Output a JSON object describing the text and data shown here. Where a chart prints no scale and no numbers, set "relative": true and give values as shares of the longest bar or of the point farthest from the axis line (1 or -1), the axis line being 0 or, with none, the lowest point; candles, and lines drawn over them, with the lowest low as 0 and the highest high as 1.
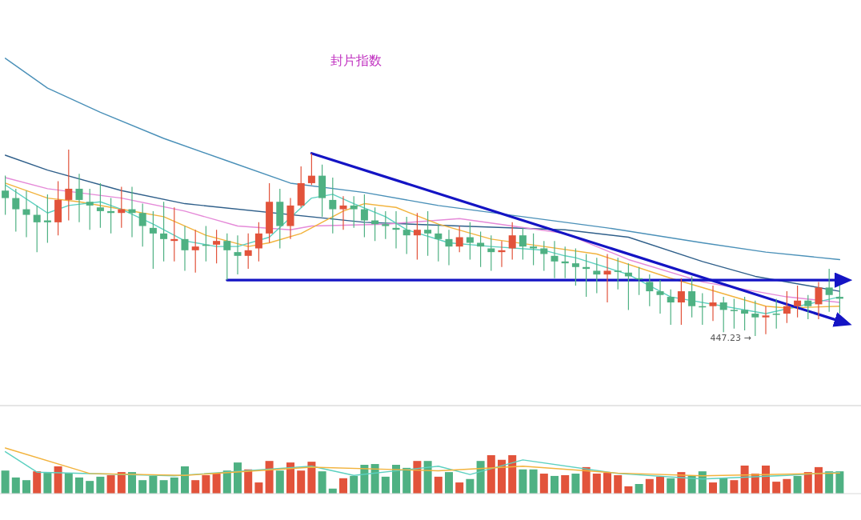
{
  "chart_data": [
    {
      "type": "candlestick",
      "title": "封片指数",
      "relative": true,
      "categories": [
        null,
        null,
        null,
        null,
        null,
        null,
        null,
        null,
        null,
        null,
        null,
        null,
        null,
        null,
        null,
        null,
        null,
        null,
        null,
        null,
        null,
        null,
        null,
        null,
        null,
        null,
        null,
        null,
        null,
        null,
        null,
        null,
        null,
        null,
        null,
        null,
        null,
        null,
        null,
        null,
        null,
        null,
        null,
        null,
        null,
        null,
        null,
        null,
        null,
        null,
        null,
        null,
        null,
        null,
        null,
        null,
        null,
        null,
        null,
        null,
        null,
        null,
        null,
        null,
        null,
        null,
        null,
        null,
        null,
        null,
        null,
        null,
        null,
        null,
        null,
        null,
        null,
        null,
        null,
        null
      ],
      "ohlc": [
        [
          0.78,
          0.86,
          0.65,
          0.74
        ],
        [
          0.74,
          0.79,
          0.56,
          0.68
        ],
        [
          0.68,
          0.78,
          0.53,
          0.65
        ],
        [
          0.65,
          0.7,
          0.45,
          0.61
        ],
        [
          0.62,
          0.76,
          0.5,
          0.61
        ],
        [
          0.61,
          0.83,
          0.54,
          0.73
        ],
        [
          0.73,
          1,
          0.62,
          0.79
        ],
        [
          0.79,
          0.87,
          0.61,
          0.73
        ],
        [
          0.72,
          0.79,
          0.57,
          0.7
        ],
        [
          0.69,
          0.82,
          0.58,
          0.67
        ],
        [
          0.67,
          0.74,
          0.55,
          0.66
        ],
        [
          0.66,
          0.8,
          0.58,
          0.68
        ],
        [
          0.68,
          0.8,
          0.53,
          0.66
        ],
        [
          0.66,
          0.71,
          0.48,
          0.59
        ],
        [
          0.58,
          0.67,
          0.36,
          0.55
        ],
        [
          0.55,
          0.72,
          0.4,
          0.52
        ],
        [
          0.51,
          0.69,
          0.4,
          0.52
        ],
        [
          0.52,
          0.59,
          0.35,
          0.46
        ],
        [
          0.46,
          0.57,
          0.34,
          0.48
        ],
        [
          0.49,
          0.59,
          0.4,
          0.49
        ],
        [
          0.49,
          0.57,
          0.39,
          0.51
        ],
        [
          0.51,
          0.55,
          0.3,
          0.46
        ],
        [
          0.45,
          0.54,
          0.33,
          0.43
        ],
        [
          0.43,
          0.55,
          0.36,
          0.46
        ],
        [
          0.47,
          0.61,
          0.4,
          0.55
        ],
        [
          0.55,
          0.82,
          0.5,
          0.72
        ],
        [
          0.72,
          0.79,
          0.47,
          0.59
        ],
        [
          0.59,
          0.74,
          0.52,
          0.7
        ],
        [
          0.7,
          0.91,
          0.69,
          0.82
        ],
        [
          0.82,
          0.98,
          0.81,
          0.86
        ],
        [
          0.86,
          0.92,
          0.64,
          0.74
        ],
        [
          0.73,
          0.85,
          0.55,
          0.68
        ],
        [
          0.68,
          0.75,
          0.57,
          0.7
        ],
        [
          0.7,
          0.75,
          0.58,
          0.68
        ],
        [
          0.68,
          0.76,
          0.53,
          0.62
        ],
        [
          0.62,
          0.69,
          0.51,
          0.6
        ],
        [
          0.6,
          0.67,
          0.52,
          0.59
        ],
        [
          0.58,
          0.67,
          0.47,
          0.57
        ],
        [
          0.57,
          0.64,
          0.44,
          0.54
        ],
        [
          0.54,
          0.66,
          0.41,
          0.57
        ],
        [
          0.57,
          0.67,
          0.43,
          0.55
        ],
        [
          0.55,
          0.6,
          0.4,
          0.52
        ],
        [
          0.52,
          0.57,
          0.38,
          0.48
        ],
        [
          0.48,
          0.59,
          0.45,
          0.53
        ],
        [
          0.53,
          0.61,
          0.41,
          0.5
        ],
        [
          0.5,
          0.56,
          0.37,
          0.48
        ],
        [
          0.47,
          0.54,
          0.35,
          0.45
        ],
        [
          0.45,
          0.51,
          0.37,
          0.46
        ],
        [
          0.47,
          0.61,
          0.41,
          0.54
        ],
        [
          0.54,
          0.58,
          0.41,
          0.48
        ],
        [
          0.48,
          0.55,
          0.38,
          0.47
        ],
        [
          0.47,
          0.51,
          0.35,
          0.44
        ],
        [
          0.43,
          0.51,
          0.31,
          0.4
        ],
        [
          0.4,
          0.48,
          0.31,
          0.39
        ],
        [
          0.39,
          0.47,
          0.27,
          0.37
        ],
        [
          0.37,
          0.44,
          0.21,
          0.36
        ],
        [
          0.35,
          0.42,
          0.23,
          0.33
        ],
        [
          0.33,
          0.44,
          0.18,
          0.35
        ],
        [
          0.35,
          0.42,
          0.25,
          0.35
        ],
        [
          0.34,
          0.39,
          0.14,
          0.32
        ],
        [
          0.31,
          0.37,
          0.22,
          0.31
        ],
        [
          0.29,
          0.33,
          0.16,
          0.24
        ],
        [
          0.24,
          0.3,
          0.12,
          0.22
        ],
        [
          0.21,
          0.25,
          0.06,
          0.18
        ],
        [
          0.18,
          0.31,
          0.06,
          0.24
        ],
        [
          0.24,
          0.32,
          0.1,
          0.16
        ],
        [
          0.16,
          0.23,
          0.06,
          0.16
        ],
        [
          0.16,
          0.27,
          0.08,
          0.18
        ],
        [
          0.18,
          0.21,
          0.02,
          0.14
        ],
        [
          0.14,
          0.2,
          0.04,
          0.14
        ],
        [
          0.14,
          0.21,
          0.03,
          0.12
        ],
        [
          0.12,
          0.19,
          0,
          0.1
        ],
        [
          0.1,
          0.16,
          0.01,
          0.11
        ],
        [
          0.12,
          0.2,
          0.04,
          0.12
        ],
        [
          0.12,
          0.24,
          0.07,
          0.16
        ],
        [
          0.16,
          0.27,
          0.1,
          0.19
        ],
        [
          0.19,
          0.22,
          0.09,
          0.16
        ],
        [
          0.17,
          0.29,
          0.09,
          0.26
        ],
        [
          0.26,
          0.36,
          0.13,
          0.22
        ],
        [
          0.21,
          0.27,
          0.12,
          0.2
        ]
      ],
      "colors": [
        "#4fb183",
        "#4fb183",
        "#4fb183",
        "#4fb183",
        "#4fb183",
        "#e2533b",
        "#e2533b",
        "#4fb183",
        "#4fb183",
        "#4fb183",
        "#4fb183",
        "#e2533b",
        "#4fb183",
        "#4fb183",
        "#4fb183",
        "#4fb183",
        "#e2533b",
        "#4fb183",
        "#e2533b",
        "#4fb183",
        "#e2533b",
        "#4fb183",
        "#4fb183",
        "#e2533b",
        "#e2533b",
        "#e2533b",
        "#4fb183",
        "#e2533b",
        "#e2533b",
        "#e2533b",
        "#4fb183",
        "#4fb183",
        "#e2533b",
        "#4fb183",
        "#4fb183",
        "#4fb183",
        "#4fb183",
        "#4fb183",
        "#4fb183",
        "#e2533b",
        "#4fb183",
        "#4fb183",
        "#4fb183",
        "#e2533b",
        "#4fb183",
        "#4fb183",
        "#4fb183",
        "#e2533b",
        "#e2533b",
        "#4fb183",
        "#4fb183",
        "#4fb183",
        "#4fb183",
        "#4fb183",
        "#4fb183",
        "#4fb183",
        "#4fb183",
        "#e2533b",
        "#4fb183",
        "#4fb183",
        "#4fb183",
        "#4fb183",
        "#4fb183",
        "#4fb183",
        "#e2533b",
        "#4fb183",
        "#4fb183",
        "#e2533b",
        "#4fb183",
        "#4fb183",
        "#4fb183",
        "#4fb183",
        "#e2533b",
        "#4fb183",
        "#e2533b",
        "#e2533b",
        "#4fb183",
        "#e2533b",
        "#4fb183",
        "#4fb183"
      ],
      "series": [
        {
          "type": "line",
          "color": "#4a90b8",
          "values": [
            1.49,
            null,
            null,
            null,
            1.33,
            null,
            null,
            null,
            null,
            1.2,
            null,
            null,
            null,
            null,
            null,
            1.06,
            null,
            null,
            null,
            null,
            null,
            0.94,
            null,
            null,
            null,
            null,
            null,
            0.82,
            null,
            null,
            null,
            null,
            null,
            null,
            0.77,
            null,
            null,
            null,
            null,
            null,
            null,
            0.7,
            null,
            null,
            null,
            null,
            null,
            null,
            null,
            0.64,
            null,
            null,
            null,
            null,
            null,
            null,
            null,
            0.58,
            null,
            null,
            null,
            null,
            null,
            null,
            null,
            null,
            0.5,
            null,
            null,
            null,
            null,
            null,
            0.45,
            null,
            null,
            null,
            null,
            null,
            null,
            0.41
          ]
        },
        {
          "type": "line",
          "color": "#2f5f8a",
          "values": [
            0.97,
            null,
            null,
            null,
            0.89,
            null,
            null,
            null,
            null,
            null,
            null,
            0.78,
            null,
            null,
            null,
            null,
            null,
            0.71,
            null,
            null,
            null,
            null,
            null,
            null,
            null,
            null,
            null,
            null,
            null,
            null,
            null,
            null,
            null,
            null,
            0.61,
            null,
            null,
            null,
            null,
            null,
            null,
            null,
            null,
            0.59,
            null,
            null,
            null,
            null,
            null,
            null,
            null,
            null,
            null,
            0.57,
            null,
            null,
            null,
            null,
            null,
            0.53,
            null,
            null,
            null,
            null,
            null,
            null,
            0.4,
            null,
            null,
            null,
            null,
            0.32,
            null,
            null,
            null,
            null,
            null,
            null,
            null,
            0.24
          ]
        },
        {
          "type": "line",
          "color": "#e58ad8",
          "values": [
            0.85,
            null,
            null,
            null,
            0.79,
            null,
            null,
            null,
            null,
            null,
            null,
            0.74,
            null,
            null,
            null,
            null,
            null,
            0.67,
            null,
            null,
            null,
            null,
            0.59,
            null,
            null,
            null,
            null,
            0.57,
            null,
            0.59,
            null,
            null,
            null,
            null,
            null,
            null,
            0.6,
            null,
            null,
            null,
            null,
            null,
            null,
            0.63,
            null,
            null,
            null,
            null,
            0.59,
            null,
            null,
            null,
            null,
            0.55,
            null,
            null,
            null,
            null,
            null,
            0.41,
            null,
            null,
            null,
            null,
            null,
            null,
            0.29,
            null,
            null,
            null,
            null,
            null,
            null,
            null,
            0.21,
            null,
            null,
            null,
            null,
            0.18
          ]
        },
        {
          "type": "line",
          "color": "#f2b33d",
          "values": [
            0.82,
            null,
            null,
            null,
            0.74,
            null,
            null,
            0.72,
            null,
            null,
            null,
            0.68,
            null,
            null,
            null,
            0.64,
            null,
            null,
            null,
            0.54,
            null,
            null,
            null,
            0.48,
            null,
            0.5,
            null,
            null,
            0.55,
            null,
            null,
            null,
            0.67,
            null,
            0.71,
            null,
            null,
            0.69,
            null,
            null,
            null,
            0.6,
            null,
            null,
            null,
            null,
            0.52,
            null,
            null,
            null,
            null,
            0.48,
            null,
            null,
            null,
            null,
            0.44,
            null,
            null,
            null,
            null,
            null,
            null,
            0.31,
            null,
            null,
            null,
            null,
            null,
            null,
            null,
            null,
            0.16,
            null,
            0.15,
            null,
            null,
            null,
            null,
            0.16
          ]
        },
        {
          "type": "line",
          "color": "#5cd0c0",
          "values": [
            0.81,
            null,
            null,
            null,
            0.66,
            null,
            0.7,
            null,
            null,
            0.72,
            null,
            0.68,
            null,
            null,
            0.6,
            null,
            null,
            0.51,
            null,
            null,
            0.48,
            null,
            0.48,
            null,
            null,
            0.53,
            null,
            null,
            null,
            0.74,
            null,
            0.76,
            null,
            0.71,
            null,
            null,
            0.64,
            null,
            0.57,
            null,
            null,
            null,
            0.5,
            null,
            null,
            null,
            0.48,
            null,
            null,
            null,
            null,
            0.46,
            null,
            0.43,
            0.42,
            null,
            null,
            null,
            null,
            0.33,
            null,
            null,
            null,
            0.21,
            null,
            null,
            null,
            null,
            null,
            null,
            null,
            null,
            0.12,
            null,
            null,
            null,
            null,
            null,
            null,
            0.21
          ]
        },
        {
          "type": "line",
          "color": "#1414c4",
          "values": [
            null,
            null,
            null,
            null,
            null,
            null,
            null,
            null,
            null,
            null,
            null,
            null,
            null,
            null,
            null,
            null,
            null,
            null,
            null,
            null,
            null,
            null,
            null,
            null,
            null,
            null,
            null,
            null,
            null,
            0.98,
            null,
            null,
            null,
            null,
            null,
            null,
            null,
            null,
            null,
            null,
            null,
            null,
            null,
            null,
            null,
            null,
            null,
            null,
            null,
            null,
            null,
            null,
            null,
            null,
            null,
            null,
            null,
            null,
            null,
            null,
            null,
            null,
            null,
            null,
            null,
            null,
            null,
            null,
            null,
            null,
            null,
            null,
            null,
            null,
            null,
            null,
            null,
            null,
            null,
            0.08
          ]
        },
        {
          "type": "line",
          "color": "#1414c4",
          "values": [
            null,
            null,
            null,
            null,
            null,
            null,
            null,
            null,
            null,
            null,
            null,
            null,
            null,
            null,
            null,
            null,
            null,
            null,
            null,
            null,
            null,
            0.3,
            null,
            null,
            null,
            null,
            null,
            null,
            null,
            null,
            null,
            null,
            null,
            null,
            null,
            null,
            null,
            null,
            null,
            null,
            null,
            null,
            null,
            null,
            null,
            null,
            null,
            null,
            null,
            null,
            null,
            null,
            null,
            null,
            null,
            null,
            null,
            null,
            null,
            null,
            null,
            null,
            null,
            null,
            null,
            null,
            null,
            null,
            null,
            null,
            null,
            null,
            null,
            null,
            null,
            null,
            null,
            null,
            null,
            0.3
          ]
        }
      ],
      "annotations": [
        "447.23 →"
      ]
    },
    {
      "type": "bar",
      "relative": true,
      "categories": [
        null,
        null,
        null,
        null,
        null,
        null,
        null,
        null,
        null,
        null,
        null,
        null,
        null,
        null,
        null,
        null,
        null,
        null,
        null,
        null,
        null,
        null,
        null,
        null,
        null,
        null,
        null,
        null,
        null,
        null,
        null,
        null,
        null,
        null,
        null,
        null,
        null,
        null,
        null,
        null,
        null,
        null,
        null,
        null,
        null,
        null,
        null,
        null,
        null,
        null,
        null,
        null,
        null,
        null,
        null,
        null,
        null,
        null,
        null,
        null,
        null,
        null,
        null,
        null,
        null,
        null,
        null,
        null,
        null,
        null,
        null,
        null,
        null,
        null,
        null,
        null,
        null,
        null,
        null,
        null
      ],
      "series": [
        {
          "type": "bar",
          "values": [
            0.6,
            0.42,
            0.35,
            0.58,
            0.54,
            0.71,
            0.54,
            0.42,
            0.33,
            0.44,
            0.48,
            0.56,
            0.56,
            0.35,
            0.46,
            0.35,
            0.42,
            0.71,
            0.35,
            0.48,
            0.52,
            0.6,
            0.81,
            0.63,
            0.29,
            0.85,
            0.6,
            0.81,
            0.6,
            0.83,
            0.58,
            0.13,
            0.4,
            0.46,
            0.75,
            0.77,
            0.44,
            0.75,
            0.67,
            0.85,
            0.85,
            0.44,
            0.56,
            0.29,
            0.38,
            0.85,
            1,
            0.88,
            1,
            0.63,
            0.63,
            0.52,
            0.46,
            0.48,
            0.52,
            0.69,
            0.52,
            0.54,
            0.48,
            0.19,
            0.25,
            0.38,
            0.44,
            0.4,
            0.56,
            0.46,
            0.58,
            0.29,
            0.4,
            0.35,
            0.73,
            0.52,
            0.73,
            0.31,
            0.38,
            0.46,
            0.56,
            0.69,
            0.58,
            0.58
          ],
          "colors": [
            "#4fb183",
            "#4fb183",
            "#4fb183",
            "#e2533b",
            "#4fb183",
            "#e2533b",
            "#4fb183",
            "#4fb183",
            "#4fb183",
            "#4fb183",
            "#e2533b",
            "#e2533b",
            "#4fb183",
            "#4fb183",
            "#4fb183",
            "#4fb183",
            "#4fb183",
            "#4fb183",
            "#e2533b",
            "#e2533b",
            "#e2533b",
            "#4fb183",
            "#4fb183",
            "#e2533b",
            "#e2533b",
            "#e2533b",
            "#4fb183",
            "#e2533b",
            "#e2533b",
            "#e2533b",
            "#4fb183",
            "#4fb183",
            "#e2533b",
            "#4fb183",
            "#4fb183",
            "#4fb183",
            "#4fb183",
            "#4fb183",
            "#4fb183",
            "#e2533b",
            "#4fb183",
            "#e2533b",
            "#4fb183",
            "#e2533b",
            "#4fb183",
            "#4fb183",
            "#e2533b",
            "#e2533b",
            "#e2533b",
            "#4fb183",
            "#4fb183",
            "#e2533b",
            "#4fb183",
            "#e2533b",
            "#4fb183",
            "#e2533b",
            "#e2533b",
            "#e2533b",
            "#e2533b",
            "#e2533b",
            "#4fb183",
            "#e2533b",
            "#e2533b",
            "#4fb183",
            "#e2533b",
            "#4fb183",
            "#4fb183",
            "#e2533b",
            "#4fb183",
            "#e2533b",
            "#e2533b",
            "#e2533b",
            "#e2533b",
            "#e2533b",
            "#e2533b",
            "#4fb183",
            "#e2533b",
            "#e2533b",
            "#4fb183",
            "#4fb183"
          ]
        }
      ]
    },
    {
      "type": "line",
      "relative": true,
      "categories": [
        null,
        null,
        null,
        null,
        null,
        null,
        null,
        null,
        null,
        null,
        null,
        null,
        null,
        null,
        null,
        null,
        null,
        null,
        null,
        null,
        null,
        null,
        null,
        null,
        null,
        null,
        null,
        null,
        null,
        null,
        null,
        null,
        null,
        null,
        null,
        null,
        null,
        null,
        null,
        null,
        null,
        null,
        null,
        null,
        null,
        null,
        null,
        null,
        null,
        null,
        null,
        null,
        null,
        null,
        null,
        null,
        null,
        null,
        null,
        null,
        null,
        null,
        null,
        null,
        null,
        null,
        null,
        null,
        null,
        null,
        null,
        null,
        null,
        null,
        null,
        null,
        null,
        null,
        null,
        null
      ],
      "series": [
        {
          "color": "#5cd0c0",
          "values": [
            0.92,
            null,
            null,
            0.47,
            null,
            null,
            null,
            null,
            null,
            null,
            null,
            null,
            null,
            null,
            null,
            null,
            0.39,
            null,
            null,
            null,
            null,
            null,
            null,
            null,
            null,
            null,
            null,
            null,
            null,
            0.6,
            null,
            null,
            null,
            0.4,
            null,
            null,
            null,
            null,
            null,
            null,
            null,
            0.6,
            null,
            null,
            0.42,
            null,
            null,
            null,
            null,
            0.74,
            null,
            null,
            null,
            null,
            null,
            null,
            null,
            null,
            0.44,
            null,
            null,
            null,
            null,
            null,
            null,
            null,
            0.32,
            null,
            null,
            null,
            null,
            null,
            null,
            null,
            0.4,
            null,
            null,
            null,
            null,
            0.47
          ]
        },
        {
          "color": "#f2b33d",
          "values": [
            1,
            null,
            null,
            null,
            null,
            null,
            null,
            null,
            0.44,
            null,
            null,
            null,
            null,
            null,
            null,
            null,
            null,
            0.4,
            null,
            null,
            null,
            null,
            null,
            null,
            null,
            null,
            null,
            null,
            null,
            0.58,
            null,
            null,
            null,
            null,
            null,
            null,
            null,
            null,
            null,
            null,
            null,
            0.5,
            null,
            null,
            null,
            null,
            null,
            null,
            null,
            0.6,
            null,
            null,
            null,
            null,
            null,
            null,
            null,
            null,
            0.45,
            null,
            null,
            null,
            null,
            null,
            null,
            null,
            0.39,
            null,
            null,
            null,
            null,
            null,
            null,
            null,
            null,
            null,
            null,
            null,
            null,
            0.45
          ]
        }
      ]
    }
  ]
}
